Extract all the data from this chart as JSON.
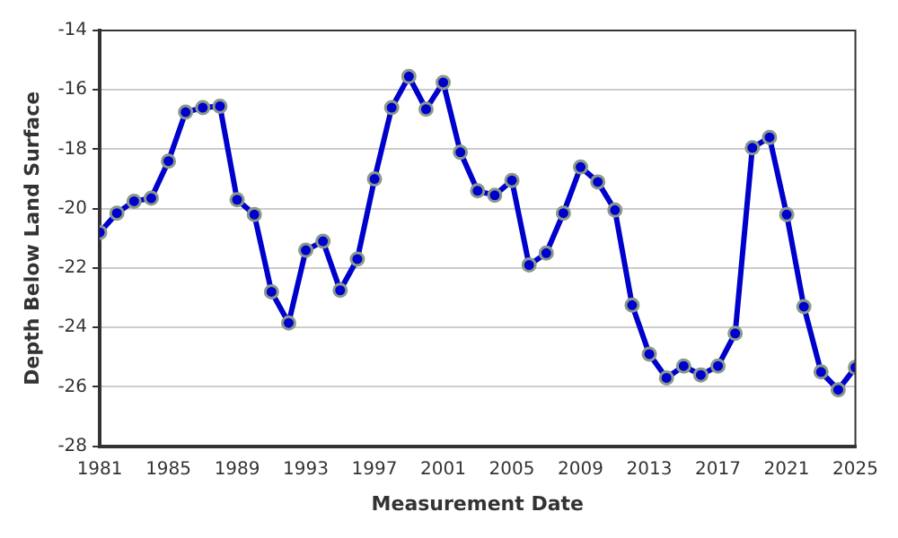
{
  "chart_data": {
    "type": "line",
    "xlabel": "Measurement Date",
    "ylabel": "Depth Below Land Surface",
    "x": [
      1981,
      1982,
      1983,
      1984,
      1985,
      1986,
      1987,
      1988,
      1989,
      1990,
      1991,
      1992,
      1993,
      1994,
      1995,
      1996,
      1997,
      1998,
      1999,
      2000,
      2001,
      2002,
      2003,
      2004,
      2005,
      2006,
      2007,
      2008,
      2009,
      2010,
      2011,
      2012,
      2013,
      2014,
      2015,
      2016,
      2017,
      2018,
      2019,
      2020,
      2021,
      2022,
      2023,
      2024,
      2025
    ],
    "series": [
      {
        "color": "#0000cc",
        "values": [
          -20.8,
          -20.15,
          -19.75,
          -19.65,
          -18.4,
          -16.75,
          -16.6,
          -16.55,
          -19.7,
          -20.2,
          -22.8,
          -23.85,
          -21.4,
          -21.1,
          -22.75,
          -21.7,
          -19.0,
          -16.6,
          -15.55,
          -16.65,
          -15.75,
          -18.1,
          -19.4,
          -19.55,
          -19.05,
          -21.9,
          -21.5,
          -20.15,
          -18.6,
          -19.1,
          -20.05,
          -23.25,
          -24.9,
          -25.7,
          -25.3,
          -25.6,
          -25.3,
          -24.2,
          -17.95,
          -17.6,
          -20.2,
          -23.3,
          -25.5,
          -26.1,
          -25.35
        ]
      }
    ],
    "xlim": [
      1981,
      2025
    ],
    "xticks": [
      1981,
      1985,
      1989,
      1993,
      1997,
      2001,
      2005,
      2009,
      2013,
      2017,
      2021,
      2025
    ],
    "ylim": [
      -28,
      -14
    ],
    "yticks": [
      -28,
      -26,
      -24,
      -22,
      -20,
      -18,
      -16,
      -14
    ],
    "grid": "y",
    "marker": "circle",
    "line_style": "solid",
    "legend": false
  }
}
